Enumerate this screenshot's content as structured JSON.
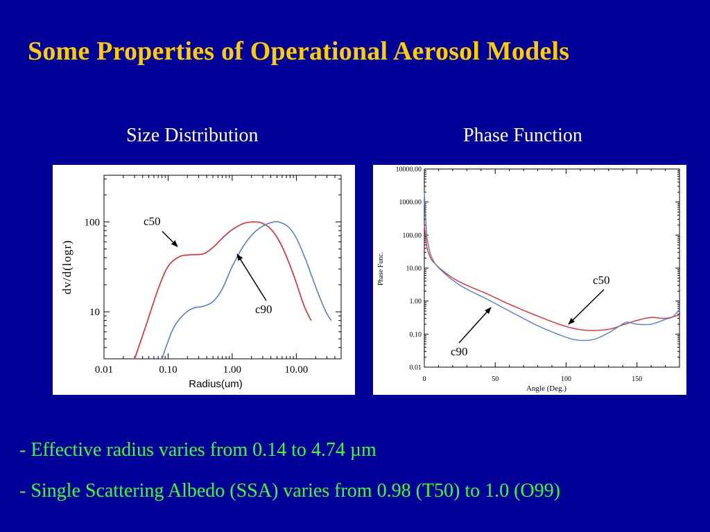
{
  "slide": {
    "title": "Some Properties of Operational Aerosol Models",
    "left_heading": "Size Distribution",
    "right_heading": "Phase Function",
    "bullets": [
      "- Effective radius varies from 0.14 to 4.74 µm",
      "- Single Scattering Albedo (SSA) varies from 0.98 (T50) to 1.0 (O99)"
    ]
  },
  "colors": {
    "background": "#000099",
    "title": "#FFCC00",
    "heading": "#FFFFFF",
    "bullets": "#33FF33",
    "c50": "#E8262B",
    "c90": "#4F7FD6"
  },
  "chart_data": [
    {
      "type": "line",
      "xlabel": "Radius(um)",
      "ylabel": "dv/d(logr)",
      "x_scale": "log",
      "y_scale": "log",
      "x_ticks": [
        "0.01",
        "0.10",
        "1.00",
        "10.00"
      ],
      "y_ticks": [
        "100",
        "10"
      ],
      "annotations": [
        "c50",
        "c90"
      ],
      "series": [
        {
          "name": "c50",
          "x": [
            0.03,
            0.045,
            0.07,
            0.1,
            0.15,
            0.22,
            0.35,
            0.5,
            0.7,
            1.0,
            1.5,
            2.2,
            3.0,
            4.2,
            6.0,
            9.0,
            13.0,
            17.0
          ],
          "y": [
            3,
            7,
            18,
            32,
            41,
            43,
            44,
            52,
            66,
            82,
            96,
            100,
            96,
            80,
            53,
            26,
            12,
            8
          ]
        },
        {
          "name": "c90",
          "x": [
            0.08,
            0.12,
            0.18,
            0.25,
            0.35,
            0.5,
            0.7,
            1.0,
            1.5,
            2.2,
            3.2,
            4.5,
            5.5,
            7.5,
            10.0,
            14.0,
            20.0,
            28.0,
            35.0
          ],
          "y": [
            3,
            6.5,
            9.5,
            11,
            11.5,
            13,
            18,
            32,
            54,
            76,
            92,
            100,
            99,
            88,
            66,
            38,
            19,
            10.5,
            8
          ]
        }
      ]
    },
    {
      "type": "line",
      "xlabel": "Angle (Deg.)",
      "ylabel": "Phase Func.",
      "y_scale": "log",
      "x_ticks": [
        "0",
        "50",
        "100",
        "150"
      ],
      "y_ticks": [
        "10000.00",
        "1000.00",
        "100.00",
        "10.00",
        "1.00",
        "0.10",
        "0.01"
      ],
      "annotations": [
        "c50",
        "c90"
      ],
      "series": [
        {
          "name": "c50",
          "x": [
            0,
            1,
            2,
            4,
            6,
            8,
            12,
            20,
            30,
            45,
            60,
            80,
            100,
            115,
            130,
            140,
            150,
            160,
            170,
            180
          ],
          "y": [
            200,
            80,
            40,
            22,
            16,
            13,
            9,
            5,
            3,
            1.6,
            0.8,
            0.35,
            0.17,
            0.13,
            0.14,
            0.19,
            0.26,
            0.32,
            0.3,
            0.38
          ]
        },
        {
          "name": "c90",
          "x": [
            0,
            1,
            2,
            4,
            6,
            8,
            12,
            20,
            30,
            45,
            60,
            80,
            100,
            110,
            120,
            130,
            138,
            143,
            150,
            160,
            170,
            175,
            180
          ],
          "y": [
            2000,
            300,
            80,
            30,
            18,
            13,
            8.5,
            4.3,
            2.3,
            1.1,
            0.5,
            0.18,
            0.08,
            0.065,
            0.07,
            0.11,
            0.18,
            0.23,
            0.2,
            0.2,
            0.28,
            0.33,
            0.55
          ]
        }
      ]
    }
  ]
}
